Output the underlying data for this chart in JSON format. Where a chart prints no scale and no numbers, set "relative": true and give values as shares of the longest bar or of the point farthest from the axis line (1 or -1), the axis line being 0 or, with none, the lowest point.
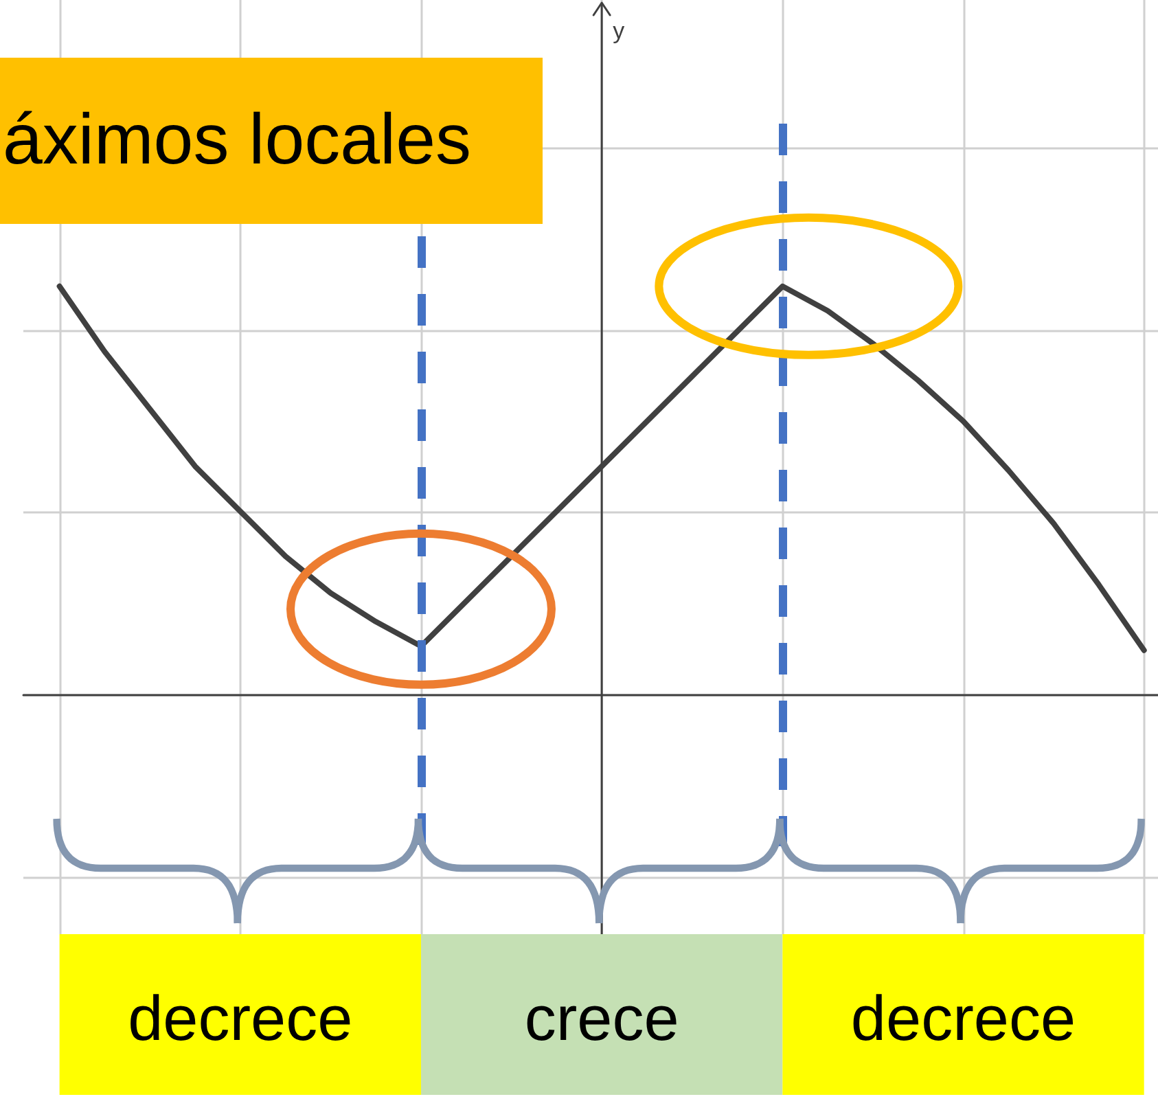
{
  "chart_data": {
    "type": "line",
    "title": "áximos locales",
    "categories": [
      null,
      null,
      null,
      null,
      null,
      null,
      null,
      null,
      null,
      null,
      null,
      null,
      null,
      null,
      null,
      null,
      null,
      null,
      null,
      null,
      null,
      null,
      null,
      null,
      null
    ],
    "values": [
      1,
      0.84,
      0.7,
      0.56,
      0.45,
      0.34,
      0.25,
      0.18,
      0.12,
      0.23,
      0.34,
      0.45,
      0.56,
      0.67,
      0.78,
      0.89,
      1,
      0.94,
      0.86,
      0.77,
      0.67,
      0.55,
      0.42,
      0.27,
      0.11
    ],
    "color": "#404040",
    "relative": true,
    "grid": true,
    "ref_lines": [
      {
        "axis": "x",
        "color": "#4472c4",
        "line_style": "dashed"
      },
      {
        "axis": "x",
        "color": "#4472c4",
        "line_style": "dashed"
      }
    ],
    "annotations": [
      "y",
      "decrece",
      "crece",
      "decrece"
    ]
  }
}
